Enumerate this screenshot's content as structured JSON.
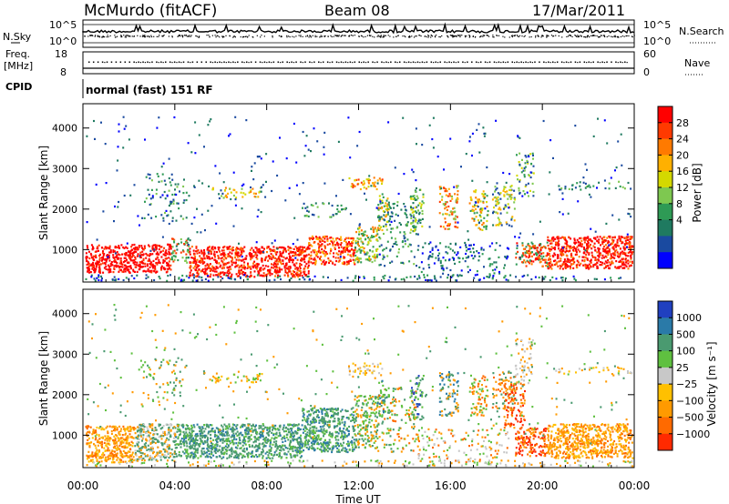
{
  "header": {
    "station": "McMurdo (fitACF)",
    "beam": "Beam 08",
    "date": "17/Mar/2011"
  },
  "top_panel": {
    "left_label": "N.Sky",
    "left_ticks": [
      "10^5",
      "10^0"
    ],
    "right_label": "N.Search",
    "right_ticks": [
      "10^5",
      "10^0"
    ]
  },
  "freq_panel": {
    "left_label_line1": "Freq.",
    "left_label_line2": "[MHz]",
    "left_ticks": [
      "18",
      "8"
    ],
    "right_label": "Nave",
    "right_ticks": [
      "60",
      "0"
    ]
  },
  "cpid": {
    "label": "CPID",
    "value": "normal (fast) 151 RF"
  },
  "chart_data": [
    {
      "type": "heatmap",
      "name": "power",
      "ylabel": "Slant Range [km]",
      "ylim": [
        200,
        4600
      ],
      "y_ticks": [
        "1000",
        "2000",
        "3000",
        "4000"
      ],
      "x_ticks": [
        "00:00",
        "04:00",
        "08:00",
        "12:00",
        "16:00",
        "20:00",
        "00:00"
      ],
      "colorbar": {
        "label": "Power [dB]",
        "ticks": [
          "28",
          "24",
          "20",
          "16",
          "12",
          "8",
          "4"
        ],
        "colors": [
          "#ff0000",
          "#ff3a00",
          "#ff7a00",
          "#ffb000",
          "#d4d800",
          "#7ec850",
          "#2e9a55",
          "#1f7a60",
          "#1a4aa0",
          "#0000ff"
        ]
      }
    },
    {
      "type": "heatmap",
      "name": "velocity",
      "ylabel": "Slant Range [km]",
      "xlabel": "Time UT",
      "ylim": [
        200,
        4600
      ],
      "y_ticks": [
        "1000",
        "2000",
        "3000",
        "4000"
      ],
      "x_ticks": [
        "00:00",
        "04:00",
        "08:00",
        "12:00",
        "16:00",
        "20:00",
        "00:00"
      ],
      "colorbar": {
        "label": "Velocity [m s⁻¹]",
        "ticks": [
          "1000",
          "500",
          "100",
          "25",
          "−25",
          "−100",
          "−500",
          "−1000"
        ],
        "colors": [
          "#2040c0",
          "#2a7aa8",
          "#4a9a70",
          "#5fc040",
          "#c8c8c8",
          "#ffc000",
          "#ff9a00",
          "#ff6a00",
          "#ff2a00"
        ]
      }
    }
  ]
}
